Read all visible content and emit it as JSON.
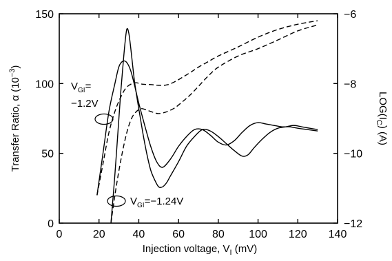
{
  "chart_data": {
    "type": "line",
    "title": "",
    "xlabel": {
      "main": "Injection voltage, V",
      "sub": "I",
      "unit": " (mV)"
    },
    "ylabel_left": {
      "main": "Transfer Ratio, α (10",
      "sup": "−3",
      "tail": ")"
    },
    "ylabel_right": {
      "pre": "LOG(I",
      "sub": "C",
      "post": ")    (A)"
    },
    "xlim": [
      0,
      140
    ],
    "ylim_left": [
      0,
      150
    ],
    "ylim_right": [
      -12,
      -6
    ],
    "x_ticks": [
      "0",
      "20",
      "40",
      "60",
      "80",
      "100",
      "120",
      "140"
    ],
    "y_ticks_left": [
      "0",
      "50",
      "100",
      "150"
    ],
    "y_ticks_right": [
      "−12",
      "−10",
      "−8",
      "−6"
    ],
    "grid": false,
    "annotations": [
      {
        "line1_pre": "V",
        "line1_sub": "GI",
        "line1_post": "=",
        "line2": "−1.2V"
      },
      {
        "pre": "V",
        "sub": "GI",
        "post": "=−1.24V"
      }
    ],
    "series": [
      {
        "style": "solid",
        "axis": "left",
        "x": [
          19,
          22,
          25,
          28,
          30,
          32,
          34,
          36,
          38,
          40,
          43,
          46,
          49,
          52,
          56,
          60,
          64,
          68,
          72,
          76,
          80,
          84,
          88,
          92,
          96,
          100,
          104,
          108,
          112,
          116,
          120,
          125,
          130
        ],
        "y": [
          20,
          50,
          80,
          100,
          112,
          116,
          115,
          109,
          98,
          86,
          70,
          55,
          44,
          40,
          46,
          55,
          62,
          67,
          67,
          63,
          58,
          56,
          59,
          65,
          70,
          72,
          71,
          70,
          69,
          69,
          68,
          67,
          66
        ]
      },
      {
        "style": "solid",
        "axis": "left",
        "x": [
          26,
          28,
          30,
          31,
          32,
          33,
          34,
          35,
          36,
          37,
          38,
          40,
          42,
          44,
          46,
          48,
          50,
          52,
          54,
          56,
          60,
          64,
          68,
          72,
          76,
          80,
          84,
          88,
          92,
          95,
          98,
          102,
          106,
          110,
          114,
          118,
          122,
          126,
          130
        ],
        "y": [
          0,
          35,
          75,
          95,
          112,
          128,
          139,
          136,
          125,
          112,
          100,
          82,
          65,
          50,
          38,
          31,
          26,
          26,
          29,
          34,
          44,
          55,
          62,
          67,
          66,
          62,
          57,
          52,
          48,
          49,
          54,
          60,
          65,
          68,
          69,
          70,
          69,
          68,
          67
        ]
      },
      {
        "style": "dashed",
        "axis": "right",
        "x": [
          19,
          22,
          25,
          28,
          31,
          34,
          38,
          42,
          46,
          50,
          54,
          58,
          62,
          66,
          70,
          75,
          80,
          90,
          100,
          110,
          120,
          130
        ],
        "y": [
          -11.2,
          -10.3,
          -9.4,
          -8.8,
          -8.38,
          -8.1,
          -7.98,
          -8.02,
          -8.03,
          -8.05,
          -8.04,
          -7.95,
          -7.82,
          -7.68,
          -7.53,
          -7.37,
          -7.21,
          -6.95,
          -6.67,
          -6.45,
          -6.3,
          -6.2
        ]
      },
      {
        "style": "dashed",
        "axis": "right",
        "x": [
          26,
          28,
          30,
          32,
          34,
          36,
          38,
          41,
          44,
          47,
          50,
          54,
          58,
          62,
          66,
          70,
          75,
          80,
          90,
          100,
          110,
          120,
          130
        ],
        "y": [
          -12,
          -11.2,
          -10.5,
          -9.9,
          -9.4,
          -9.05,
          -8.85,
          -8.72,
          -8.76,
          -8.82,
          -8.86,
          -8.81,
          -8.7,
          -8.52,
          -8.32,
          -8.08,
          -7.78,
          -7.53,
          -7.21,
          -7.0,
          -6.75,
          -6.49,
          -6.32
        ]
      }
    ]
  }
}
